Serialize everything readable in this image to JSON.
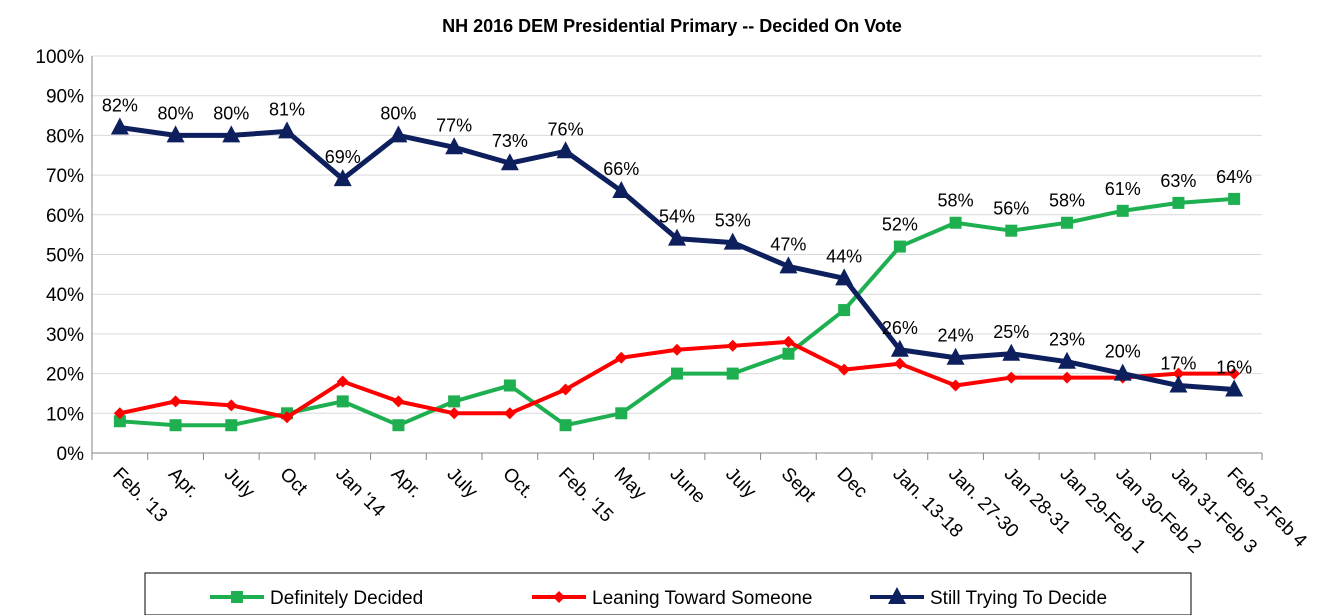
{
  "chart_data": {
    "type": "line",
    "title": "NH 2016 DEM Presidential Primary -- Decided On Vote",
    "xlabel": "",
    "ylabel": "",
    "ylim": [
      0,
      100
    ],
    "y_ticks": [
      "0%",
      "10%",
      "20%",
      "30%",
      "40%",
      "50%",
      "60%",
      "70%",
      "80%",
      "90%",
      "100%"
    ],
    "grid": "horizontal",
    "legend_position": "bottom",
    "categories": [
      "Feb. '13",
      "Apr.",
      "July",
      "Oct",
      "Jan '14",
      "Apr.",
      "July",
      "Oct.",
      "Feb. '15",
      "May",
      "June",
      "July",
      "Sept",
      "Dec",
      "Jan. 13-18",
      "Jan. 27-30",
      "Jan 28-31",
      "Jan 29-Feb 1",
      "Jan 30-Feb 2",
      "Jan 31-Feb 3",
      "Feb 2-Feb 4"
    ],
    "series": [
      {
        "name": "Definitely Decided",
        "color": "#1eb050",
        "marker": "square",
        "values": [
          8,
          7,
          7,
          10,
          13,
          7,
          13,
          17,
          7,
          10,
          20,
          20,
          25,
          36,
          52,
          58,
          56,
          58,
          61,
          63,
          64
        ],
        "labels": [
          "",
          "",
          "",
          "",
          "",
          "",
          "",
          "",
          "",
          "",
          "",
          "",
          "",
          "",
          "52%",
          "58%",
          "56%",
          "58%",
          "61%",
          "63%",
          "64%"
        ]
      },
      {
        "name": "Leaning Toward Someone",
        "color": "#ff0000",
        "marker": "diamond",
        "values": [
          10,
          13,
          12,
          9,
          18,
          13,
          10,
          10,
          16,
          24,
          26,
          27,
          28,
          21,
          22.5,
          17,
          19,
          19,
          19,
          20,
          20
        ],
        "labels": []
      },
      {
        "name": "Still Trying To Decide",
        "color": "#0d1f5c",
        "marker": "triangle",
        "values": [
          82,
          80,
          80,
          81,
          69,
          80,
          77,
          73,
          76,
          66,
          54,
          53,
          47,
          44,
          26,
          24,
          25,
          23,
          20,
          17,
          16
        ],
        "labels": [
          "82%",
          "80%",
          "80%",
          "81%",
          "69%",
          "80%",
          "77%",
          "73%",
          "76%",
          "66%",
          "54%",
          "53%",
          "47%",
          "44%",
          "26%",
          "24%",
          "25%",
          "23%",
          "20%",
          "17%",
          "16%"
        ]
      }
    ]
  }
}
